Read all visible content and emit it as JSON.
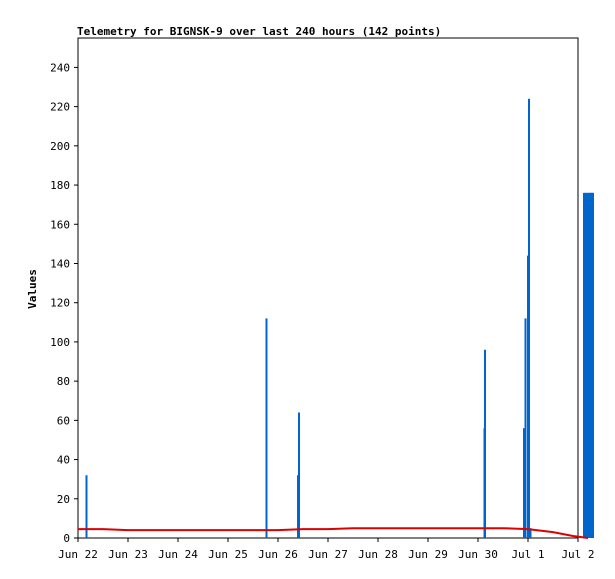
{
  "chart_data": {
    "type": "bar",
    "title": "Telemetry for BIGNSK-9 over last 240 hours (142 points)",
    "ylabel": "Values",
    "xlabel": "",
    "ylim": [
      0,
      255
    ],
    "yticks": [
      0,
      20,
      40,
      60,
      80,
      100,
      120,
      140,
      160,
      180,
      200,
      220,
      240
    ],
    "xtick_labels": [
      "Jun 22",
      "Jun 23",
      "Jun 24",
      "Jun 25",
      "Jun 26",
      "Jun 27",
      "Jun 28",
      "Jun 29",
      "Jun 30",
      "Jul 1",
      "Jul 2"
    ],
    "xlim_days": [
      0,
      10
    ],
    "grid": false,
    "colors": {
      "bars": "#0066cc",
      "line": "#dd0000",
      "axis": "#000000"
    },
    "series": [
      {
        "type": "bar",
        "x_days": [
          0.17,
          3.77,
          4.4,
          4.42,
          8.13,
          8.14,
          8.92,
          8.95,
          9.0,
          9.02,
          9.05,
          10.12,
          10.13,
          10.14,
          10.15,
          10.16,
          10.17,
          10.18,
          10.19,
          10.2,
          10.21,
          10.22,
          10.23,
          10.24,
          10.25,
          10.26,
          10.27,
          10.28,
          10.29,
          10.3
        ],
        "values": [
          32,
          112,
          32,
          64,
          56,
          96,
          56,
          112,
          144,
          224,
          5,
          176,
          176,
          176,
          132,
          132,
          176,
          176,
          176,
          160,
          160,
          176,
          176,
          176,
          176,
          176,
          160,
          176,
          176,
          176
        ]
      },
      {
        "type": "line",
        "x_days": [
          0,
          0.5,
          1,
          1.5,
          2,
          2.5,
          3,
          3.5,
          4,
          4.5,
          5,
          5.5,
          6,
          6.5,
          7,
          7.5,
          8,
          8.5,
          9,
          9.5,
          9.9,
          10.2
        ],
        "values": [
          4.5,
          4.5,
          4,
          4,
          4,
          4,
          4,
          4,
          4,
          4.5,
          4.5,
          5,
          5,
          5,
          5,
          5,
          5,
          5,
          4.5,
          3,
          1,
          0
        ]
      }
    ]
  }
}
